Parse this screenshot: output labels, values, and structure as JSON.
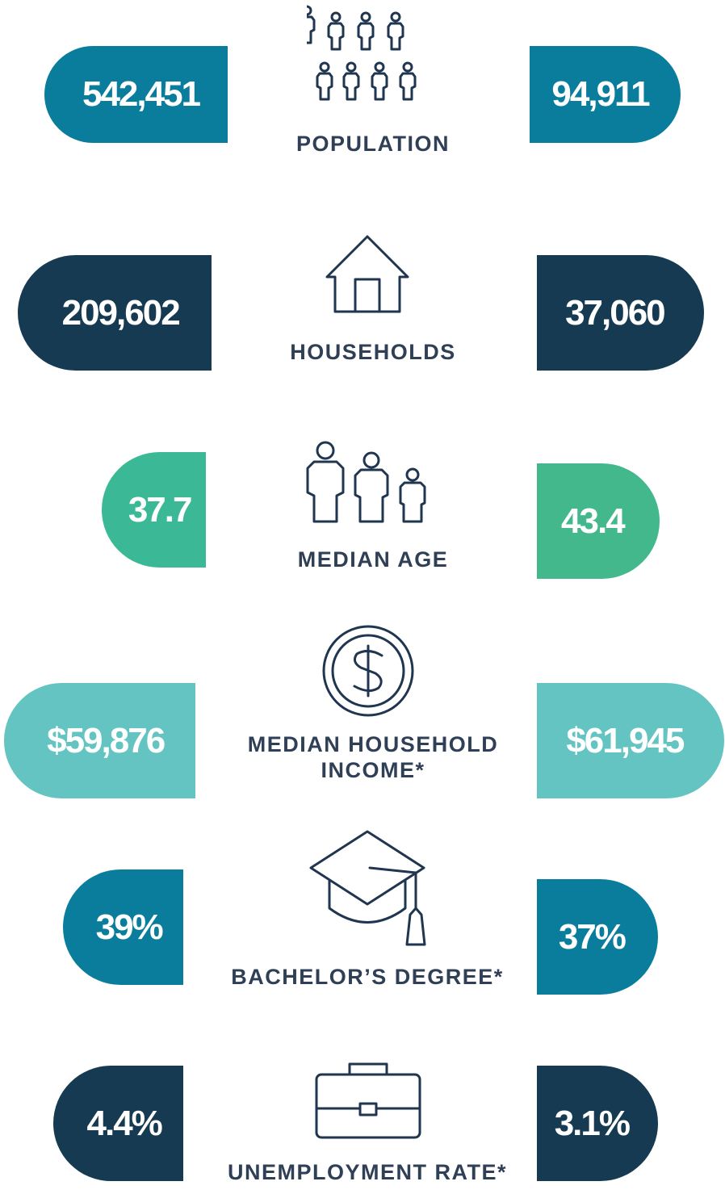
{
  "rows": [
    {
      "label": "POPULATION",
      "left": "542,451",
      "right": "94,911"
    },
    {
      "label": "HOUSEHOLDS",
      "left": "209,602",
      "right": "37,060"
    },
    {
      "label": "MEDIAN AGE",
      "left": "37.7",
      "right": "43.4"
    },
    {
      "label": "MEDIAN HOUSEHOLD INCOME*",
      "left": "$59,876",
      "right": "$61,945"
    },
    {
      "label": "BACHELOR’S DEGREE*",
      "left": "39%",
      "right": "37%"
    },
    {
      "label": "UNEMPLOYMENT RATE*",
      "left": "4.4%",
      "right": "3.1%"
    }
  ]
}
